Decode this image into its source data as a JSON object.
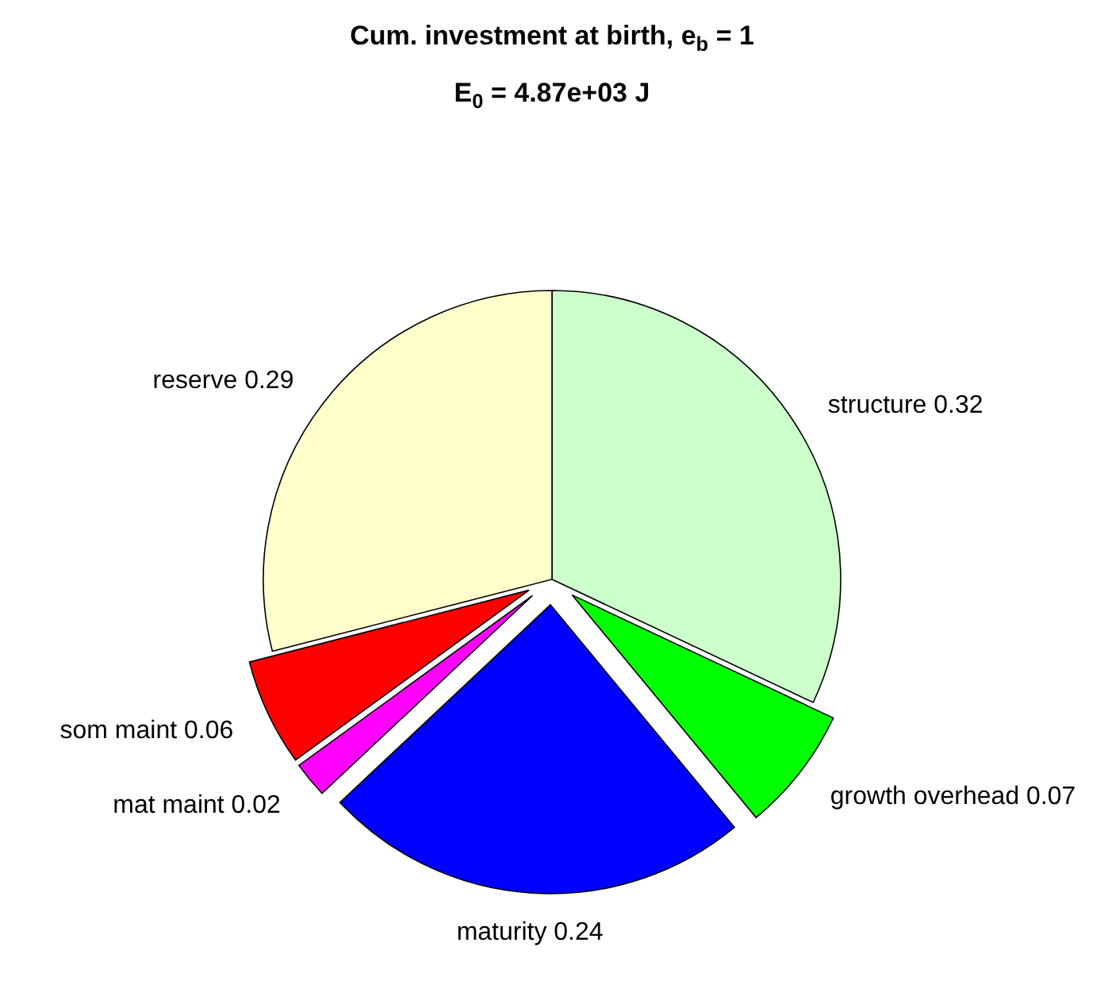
{
  "chart_data": {
    "type": "pie",
    "title": "Cum. investment at birth, e$_{b}$ = 1",
    "subtitle": "E$_{0}$ = 4.87e+03 J",
    "categories": [
      "structure 0.32",
      "growth overhead 0.07",
      "maturity 0.24",
      "mat maint 0.02",
      "som maint 0.06",
      "reserve 0.29"
    ],
    "values": [
      0.32,
      0.07,
      0.24,
      0.02,
      0.06,
      0.29
    ],
    "colors": [
      "#ccffcc",
      "#00ff00",
      "#0000ff",
      "#ff00ff",
      "#ff0000",
      "#ffffcc"
    ],
    "legend": false
  }
}
